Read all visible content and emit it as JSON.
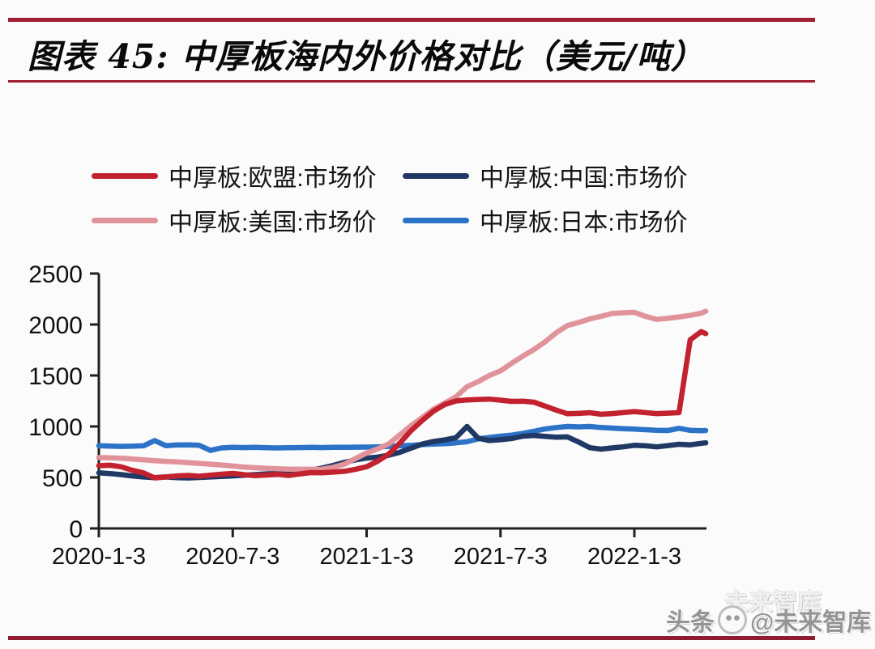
{
  "figure": {
    "title": "图表 45: 中厚板海内外价格对比（美元/吨）"
  },
  "legend": {
    "items": [
      {
        "key": "eu",
        "label": "中厚板:欧盟:市场价",
        "color": "#C2222E"
      },
      {
        "key": "china",
        "label": "中厚板:中国:市场价",
        "color": "#1F3864"
      },
      {
        "key": "us",
        "label": "中厚板:美国:市场价",
        "color": "#E1939B"
      },
      {
        "key": "japan",
        "label": "中厚板:日本:市场价",
        "color": "#2C73C8"
      }
    ]
  },
  "watermark": {
    "prefix": "头条",
    "handle": "@未来智库",
    "ghost": "未来智库"
  },
  "chart_data": {
    "type": "line",
    "title": "中厚板海内外价格对比（美元/吨）",
    "xlabel": "",
    "ylabel": "",
    "unit": "美元/吨",
    "ylim": [
      0,
      2500
    ],
    "yticks": [
      0,
      500,
      1000,
      1500,
      2000,
      2500
    ],
    "xtick_labels": [
      "2020-1-3",
      "2020-7-3",
      "2021-1-3",
      "2021-7-3",
      "2022-1-3"
    ],
    "xtick_months": [
      0,
      6,
      12,
      18,
      24
    ],
    "grid": false,
    "legend_position": "top",
    "x_months": [
      0,
      0.5,
      1,
      1.5,
      2,
      2.5,
      3,
      3.5,
      4,
      4.5,
      5,
      5.5,
      6,
      6.5,
      7,
      7.5,
      8,
      8.5,
      9,
      9.5,
      10,
      10.5,
      11,
      11.5,
      12,
      12.5,
      13,
      13.5,
      14,
      14.5,
      15,
      15.5,
      16,
      16.5,
      17,
      17.5,
      18,
      18.5,
      19,
      19.5,
      20,
      20.5,
      21,
      21.5,
      22,
      22.5,
      23,
      23.5,
      24,
      24.5,
      25,
      25.5,
      26,
      26.5,
      27,
      27.2
    ],
    "series": [
      {
        "key": "japan",
        "name": "中厚板:日本:市场价",
        "color": "#2C73C8",
        "values": [
          810,
          808,
          805,
          806,
          810,
          862,
          812,
          818,
          820,
          815,
          765,
          790,
          795,
          793,
          795,
          792,
          790,
          792,
          793,
          795,
          793,
          795,
          795,
          797,
          798,
          800,
          805,
          810,
          815,
          822,
          828,
          832,
          840,
          850,
          878,
          892,
          905,
          915,
          932,
          952,
          975,
          990,
          1000,
          996,
          1000,
          990,
          984,
          978,
          974,
          968,
          962,
          960,
          982,
          962,
          958,
          960
        ]
      },
      {
        "key": "china",
        "name": "中厚板:中国:市场价",
        "color": "#1F3864",
        "values": [
          545,
          538,
          528,
          515,
          505,
          498,
          505,
          498,
          495,
          500,
          505,
          510,
          515,
          522,
          528,
          535,
          540,
          548,
          558,
          572,
          592,
          618,
          648,
          672,
          690,
          700,
          718,
          748,
          788,
          828,
          852,
          868,
          890,
          1000,
          885,
          862,
          870,
          882,
          905,
          912,
          902,
          895,
          898,
          848,
          792,
          778,
          790,
          800,
          815,
          810,
          800,
          812,
          825,
          820,
          835,
          840
        ]
      },
      {
        "key": "us",
        "name": "中厚板:美国:市场价",
        "color": "#E1939B",
        "values": [
          695,
          692,
          688,
          680,
          672,
          665,
          658,
          652,
          645,
          638,
          630,
          622,
          612,
          602,
          595,
          590,
          585,
          582,
          580,
          580,
          582,
          600,
          630,
          685,
          740,
          780,
          830,
          920,
          1010,
          1090,
          1170,
          1230,
          1290,
          1390,
          1440,
          1500,
          1545,
          1620,
          1690,
          1755,
          1830,
          1920,
          1990,
          2020,
          2055,
          2080,
          2108,
          2115,
          2120,
          2080,
          2050,
          2060,
          2075,
          2090,
          2110,
          2130
        ]
      },
      {
        "key": "eu",
        "name": "中厚板:欧盟:市场价",
        "color": "#C2222E",
        "values": [
          615,
          620,
          605,
          570,
          545,
          495,
          505,
          515,
          520,
          512,
          522,
          532,
          540,
          528,
          518,
          524,
          530,
          520,
          535,
          548,
          545,
          552,
          560,
          580,
          605,
          660,
          730,
          840,
          960,
          1060,
          1150,
          1215,
          1250,
          1260,
          1265,
          1268,
          1258,
          1246,
          1248,
          1238,
          1200,
          1160,
          1125,
          1128,
          1135,
          1120,
          1126,
          1136,
          1146,
          1136,
          1126,
          1130,
          1136,
          1850,
          1930,
          1910
        ]
      }
    ]
  },
  "colors": {
    "top_rule": "#A21E34",
    "bottom_rule": "#8E1C30",
    "axis": "#1F1F1F",
    "background": "#FBFBFC"
  }
}
